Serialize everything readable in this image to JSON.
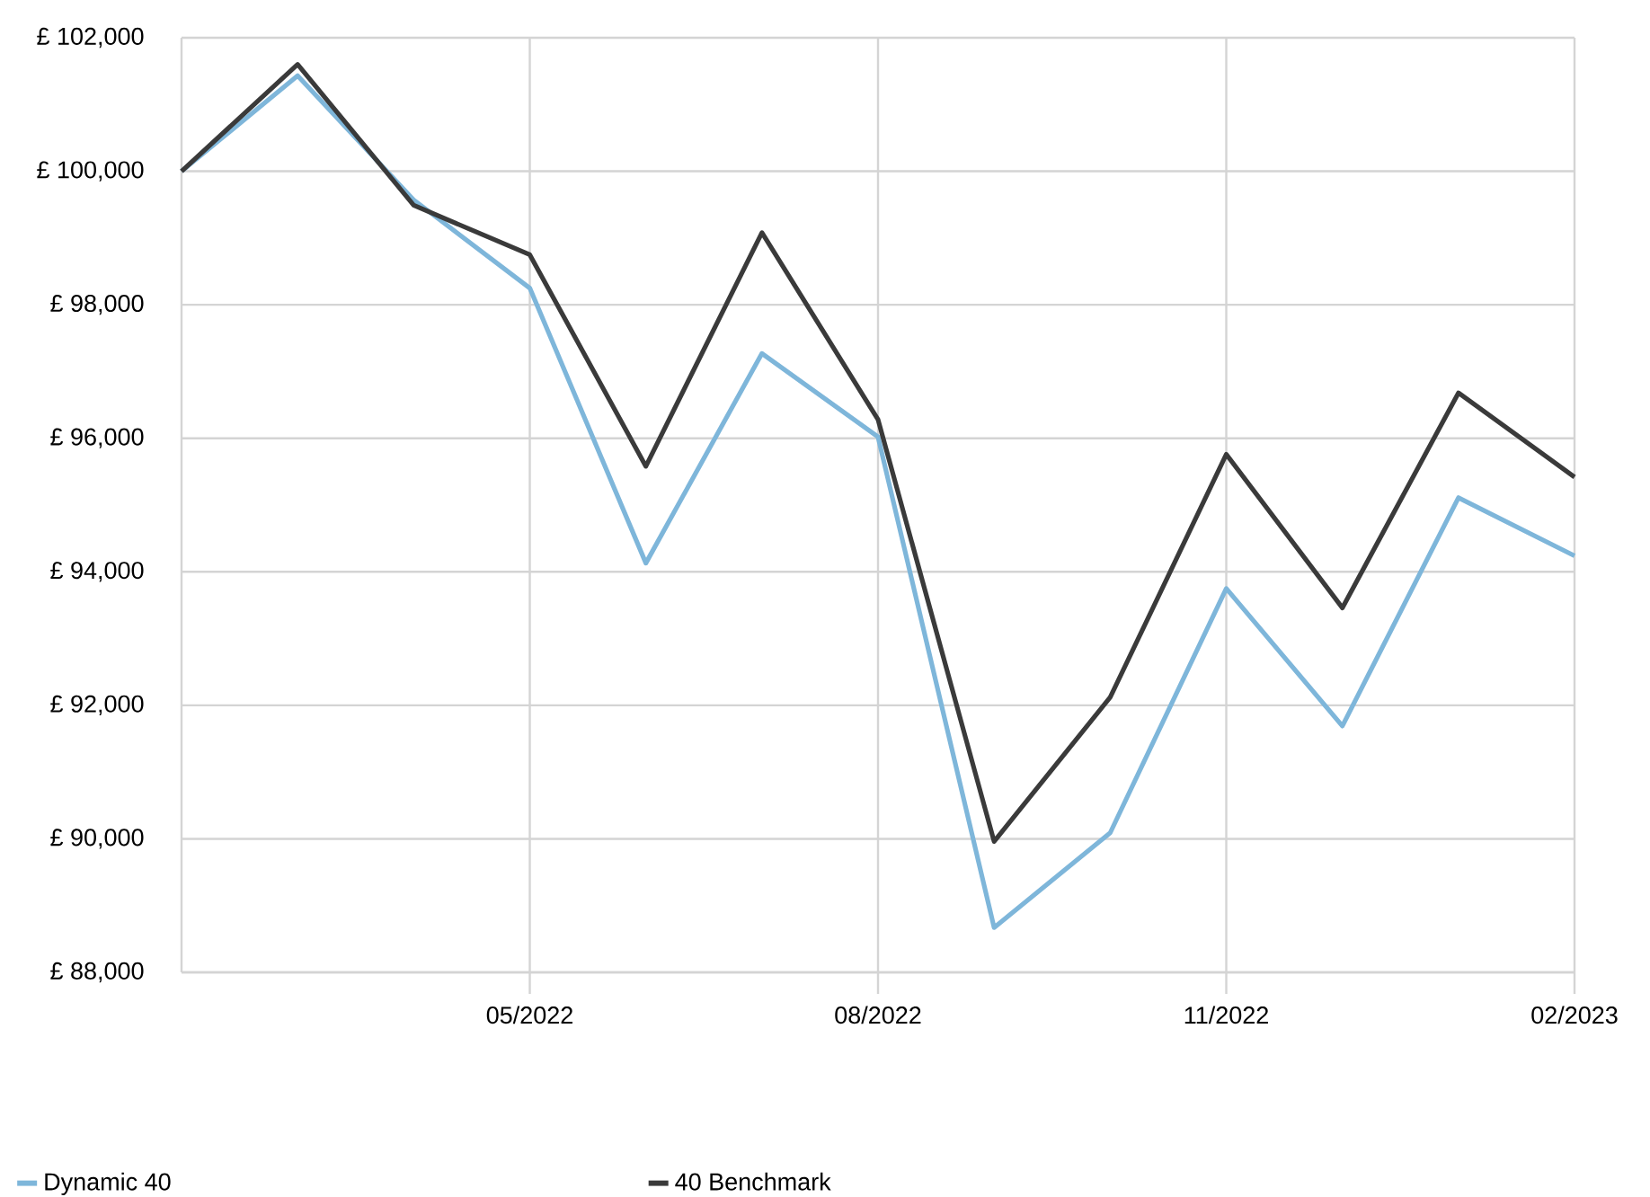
{
  "chart_data": {
    "type": "line",
    "categories": [
      null,
      null,
      null,
      "05/2022",
      null,
      null,
      "08/2022",
      null,
      null,
      "11/2022",
      null,
      null,
      "02/2023"
    ],
    "series": [
      {
        "name": "Dynamic 40",
        "color": "#7eb6da",
        "values": [
          100000,
          101430,
          99570,
          98250,
          94130,
          97270,
          96020,
          88670,
          90090,
          93750,
          91690,
          95110,
          94240
        ]
      },
      {
        "name": "40 Benchmark",
        "color": "#3a3a3a",
        "values": [
          100000,
          101600,
          99490,
          98750,
          95580,
          99080,
          96280,
          89960,
          92120,
          95760,
          93460,
          96680,
          95420
        ]
      }
    ],
    "ylim": [
      88000,
      102000
    ],
    "yticks": [
      {
        "value": 88000,
        "label": "£ 88,000"
      },
      {
        "value": 90000,
        "label": "£ 90,000"
      },
      {
        "value": 92000,
        "label": "£ 92,000"
      },
      {
        "value": 94000,
        "label": "£ 94,000"
      },
      {
        "value": 96000,
        "label": "£ 96,000"
      },
      {
        "value": 98000,
        "label": "£ 98,000"
      },
      {
        "value": 100000,
        "label": "£ 100,000"
      },
      {
        "value": 102000,
        "label": "£ 102,000"
      }
    ],
    "grid": true,
    "legend": "bottom",
    "line_style": "solid"
  }
}
